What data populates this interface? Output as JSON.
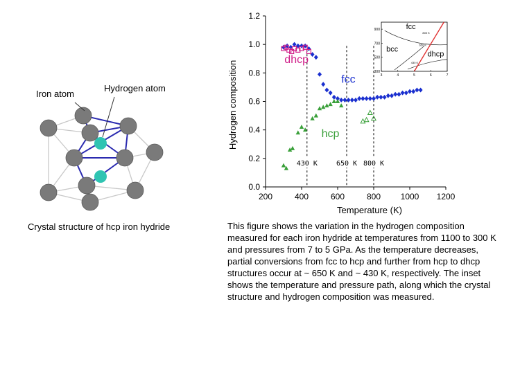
{
  "structure": {
    "iron_label": "Iron atom",
    "hydrogen_label": "Hydrogen atom",
    "caption": "Crystal structure of hcp iron hydride",
    "colors": {
      "iron": "#7a7a7a",
      "hydrogen": "#2fc4b2",
      "bond": "#2b2bb0",
      "edge": "#c8c8c8"
    }
  },
  "figure_caption": "This figure shows the variation in the hydrogen composition measured for each iron hydride at temperatures from 1100 to 300 K and pressures from 7 to 5 GPa. As the temperature decreases, partial conversions from fcc to hcp and further from hcp to dhcp structures occur at ~ 650 K and ~ 430 K, respectively. The inset shows the temperature and pressure path, along which the crystal structure and hydrogen composition was measured.",
  "chart_data": [
    {
      "type": "scatter",
      "xlabel": "Temperature (K)",
      "ylabel": "Hydrogen composition",
      "xlim": [
        200,
        1200
      ],
      "ylim": [
        0.0,
        1.2
      ],
      "xticks": [
        200,
        400,
        600,
        800,
        1000,
        1200
      ],
      "yticks": [
        0.0,
        0.2,
        0.4,
        0.6,
        0.8,
        1.0,
        1.2
      ],
      "ytick_labels": [
        "0.0",
        "0.2",
        "0.4",
        "0.6",
        "0.8",
        "1.0",
        "1.2"
      ],
      "grid": false,
      "series": [
        {
          "name": "fcc",
          "color": "#1a2fcf",
          "marker": "diamond",
          "x": [
            300,
            320,
            340,
            360,
            380,
            400,
            420,
            440,
            460,
            480,
            500,
            520,
            540,
            560,
            580,
            600,
            620,
            640,
            660,
            680,
            700,
            720,
            740,
            760,
            780,
            800,
            820,
            840,
            860,
            880,
            900,
            920,
            940,
            960,
            980,
            1000,
            1020,
            1040,
            1060
          ],
          "y": [
            0.98,
            0.99,
            0.98,
            1.0,
            0.99,
            0.99,
            0.99,
            0.97,
            0.93,
            0.91,
            0.79,
            0.72,
            0.68,
            0.66,
            0.63,
            0.62,
            0.61,
            0.61,
            0.61,
            0.61,
            0.61,
            0.62,
            0.62,
            0.62,
            0.62,
            0.62,
            0.63,
            0.63,
            0.63,
            0.64,
            0.64,
            0.65,
            0.65,
            0.66,
            0.66,
            0.67,
            0.67,
            0.68,
            0.68
          ]
        },
        {
          "name": "hcp",
          "color": "#3aa03a",
          "marker": "triangle",
          "x": [
            300,
            315,
            335,
            350,
            380,
            400,
            420,
            460,
            480,
            500,
            520,
            540,
            560,
            580,
            600,
            620
          ],
          "y": [
            0.15,
            0.13,
            0.26,
            0.27,
            0.38,
            0.42,
            0.4,
            0.48,
            0.5,
            0.55,
            0.56,
            0.57,
            0.58,
            0.6,
            0.6,
            0.57
          ]
        },
        {
          "name": "hcp-open",
          "color": "#3aa03a",
          "marker": "open-triangle",
          "x": [
            740,
            760,
            780,
            800
          ],
          "y": [
            0.46,
            0.47,
            0.52,
            0.48
          ]
        },
        {
          "name": "dhcp",
          "color": "#d0208a",
          "marker": "open-square",
          "x": [
            300,
            315,
            330,
            345,
            360,
            380,
            400,
            420,
            440
          ],
          "y": [
            0.97,
            0.98,
            0.96,
            0.95,
            0.97,
            0.96,
            0.97,
            0.98,
            0.95
          ]
        }
      ],
      "phase_labels": [
        {
          "text": "dhcp",
          "color": "#d0208a",
          "x": 305,
          "y": 0.87
        },
        {
          "text": "fcc",
          "color": "#1a2fcf",
          "x": 620,
          "y": 0.73
        },
        {
          "text": "hcp",
          "color": "#3aa03a",
          "x": 510,
          "y": 0.35
        }
      ],
      "vlines": [
        {
          "x": 430,
          "label": "430 K"
        },
        {
          "x": 650,
          "label": "650 K"
        },
        {
          "x": 800,
          "label": "800 K"
        }
      ]
    },
    {
      "type": "line",
      "role": "inset",
      "xlim": [
        3,
        7
      ],
      "ylim": [
        300,
        1000
      ],
      "xticks": [
        3,
        4,
        5,
        6,
        7
      ],
      "yticks": [
        300,
        500,
        700,
        900
      ],
      "regions": [
        "fcc",
        "bcc",
        "dhcp"
      ],
      "path_labels": [
        "800 K",
        "650 K",
        "430 K"
      ],
      "path_color": "#e03030",
      "path": {
        "x": [
          5.0,
          6.8
        ],
        "y": [
          300,
          1000
        ]
      }
    }
  ]
}
